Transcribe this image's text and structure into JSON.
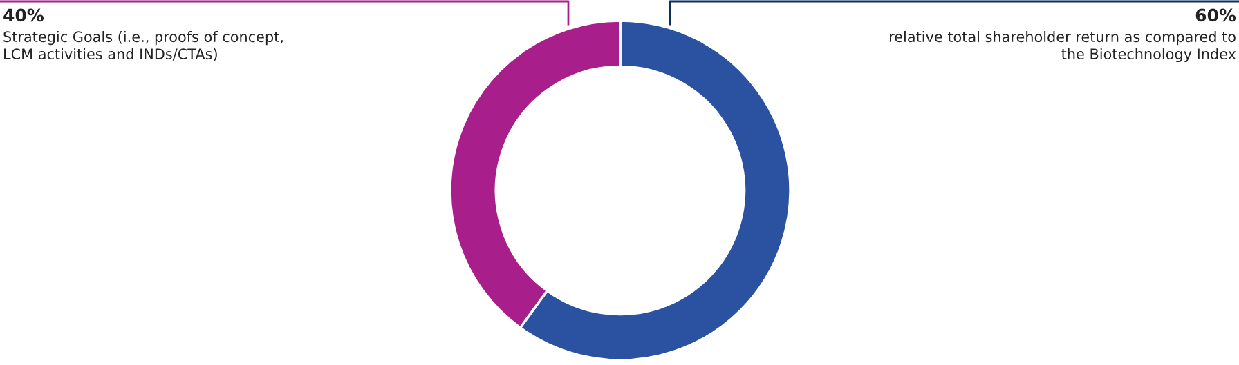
{
  "chart_data": {
    "type": "donut",
    "categories": [
      "relative total shareholder return as compared to\nthe Biotechnology Index",
      "Strategic Goals (i.e., proofs of concept,\nLCM activities and INDs/CTAs)"
    ],
    "values": [
      60,
      40
    ],
    "colors": [
      "#2a52a0",
      "#a81f8c"
    ],
    "value_labels": [
      "60%",
      "40%"
    ],
    "legend": false
  }
}
